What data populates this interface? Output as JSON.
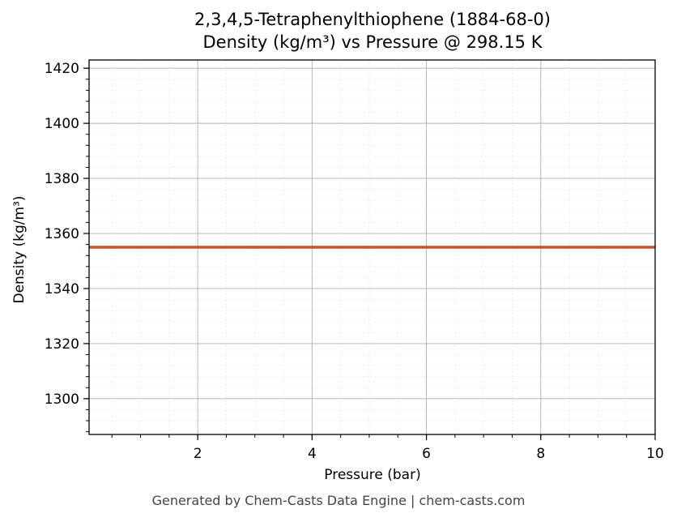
{
  "chart_data": {
    "type": "line",
    "title": "2,3,4,5-Tetraphenylthiophene (1884-68-0)",
    "subtitle": "Density (kg/m³) vs Pressure @ 298.15 K",
    "xlabel": "Pressure (bar)",
    "ylabel": "Density (kg/m³)",
    "xlim": [
      0.1,
      10
    ],
    "ylim": [
      1287,
      1423
    ],
    "xticks": [
      2,
      4,
      6,
      8,
      10
    ],
    "yticks": [
      1300,
      1320,
      1340,
      1360,
      1380,
      1400,
      1420
    ],
    "grid": true,
    "series": [
      {
        "x": [
          0.1,
          10
        ],
        "y": [
          1355,
          1355
        ],
        "color": "#c8522a"
      }
    ]
  },
  "footer": "Generated by Chem-Casts Data Engine | chem-casts.com"
}
